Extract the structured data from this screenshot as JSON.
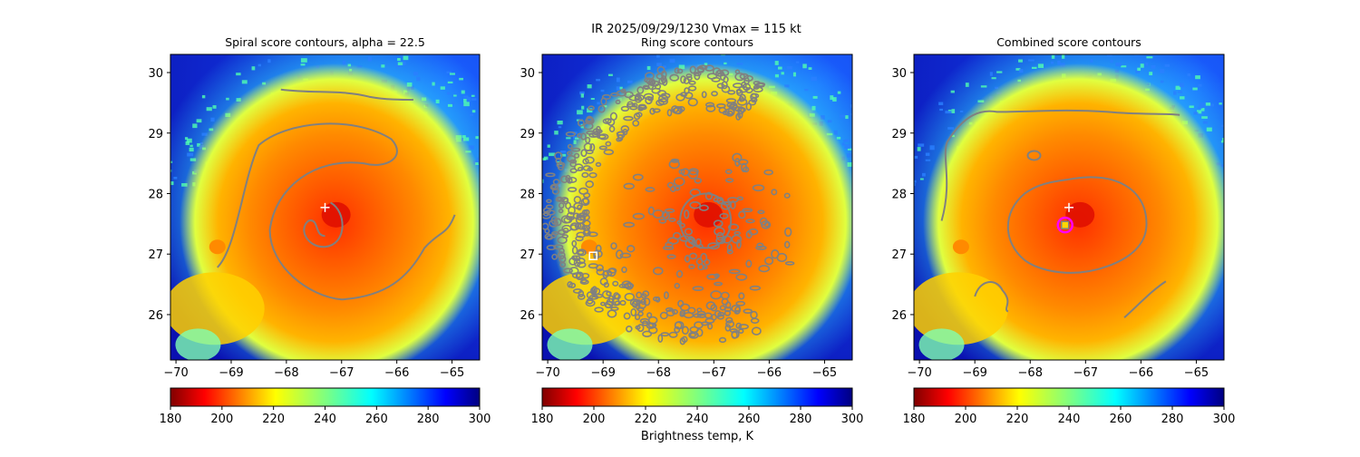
{
  "figure": {
    "suptitle": "IR  2025/09/29/1230    Vmax = 115 kt",
    "colorbar_label": "Brightness temp, K"
  },
  "chart_data": [
    {
      "type": "heatmap",
      "title": "Spiral score contours, alpha = 22.5",
      "xlabel": "",
      "ylabel": "",
      "xlim": [
        -70.1,
        -64.5
      ],
      "ylim": [
        25.25,
        30.3
      ],
      "x_ticks": [
        -70,
        -69,
        -68,
        -67,
        -66,
        -65
      ],
      "y_ticks": [
        26,
        27,
        28,
        29,
        30
      ],
      "colorbar": {
        "min": 180,
        "max": 300,
        "ticks": [
          180,
          200,
          220,
          240,
          260,
          280,
          300
        ],
        "colormap": "jet_r"
      },
      "markers": [
        {
          "kind": "plus",
          "lon": -67.3,
          "lat": 27.77,
          "color": "#ffffff"
        }
      ],
      "contour_color": "#808080"
    },
    {
      "type": "heatmap",
      "title": "Ring score contours",
      "xlabel": "",
      "ylabel": "",
      "xlim": [
        -70.1,
        -64.5
      ],
      "ylim": [
        25.25,
        30.3
      ],
      "x_ticks": [
        -70,
        -69,
        -68,
        -67,
        -66,
        -65
      ],
      "y_ticks": [
        26,
        27,
        28,
        29,
        30
      ],
      "colorbar": {
        "min": 180,
        "max": 300,
        "ticks": [
          180,
          200,
          220,
          240,
          260,
          280,
          300
        ],
        "colormap": "jet_r"
      },
      "markers": [
        {
          "kind": "square",
          "lon": -69.18,
          "lat": 26.97,
          "color": "#ffffff"
        }
      ],
      "contour_color": "#808080"
    },
    {
      "type": "heatmap",
      "title": "Combined score contours",
      "xlabel": "",
      "ylabel": "",
      "xlim": [
        -70.1,
        -64.5
      ],
      "ylim": [
        25.25,
        30.3
      ],
      "x_ticks": [
        -70,
        -69,
        -68,
        -67,
        -66,
        -65
      ],
      "y_ticks": [
        26,
        27,
        28,
        29,
        30
      ],
      "colorbar": {
        "min": 180,
        "max": 300,
        "ticks": [
          180,
          200,
          220,
          240,
          260,
          280,
          300
        ],
        "colormap": "jet_r"
      },
      "markers": [
        {
          "kind": "plus",
          "lon": -67.3,
          "lat": 27.77,
          "color": "#ffffff"
        },
        {
          "kind": "circle",
          "lon": -67.37,
          "lat": 27.48,
          "color": "#ff00ff"
        },
        {
          "kind": "square",
          "lon": -67.37,
          "lat": 27.48,
          "color": "#ffd700"
        }
      ],
      "contour_color": "#808080"
    }
  ],
  "colors": {
    "contour": "#808080",
    "cold_background": "#1020c8"
  }
}
